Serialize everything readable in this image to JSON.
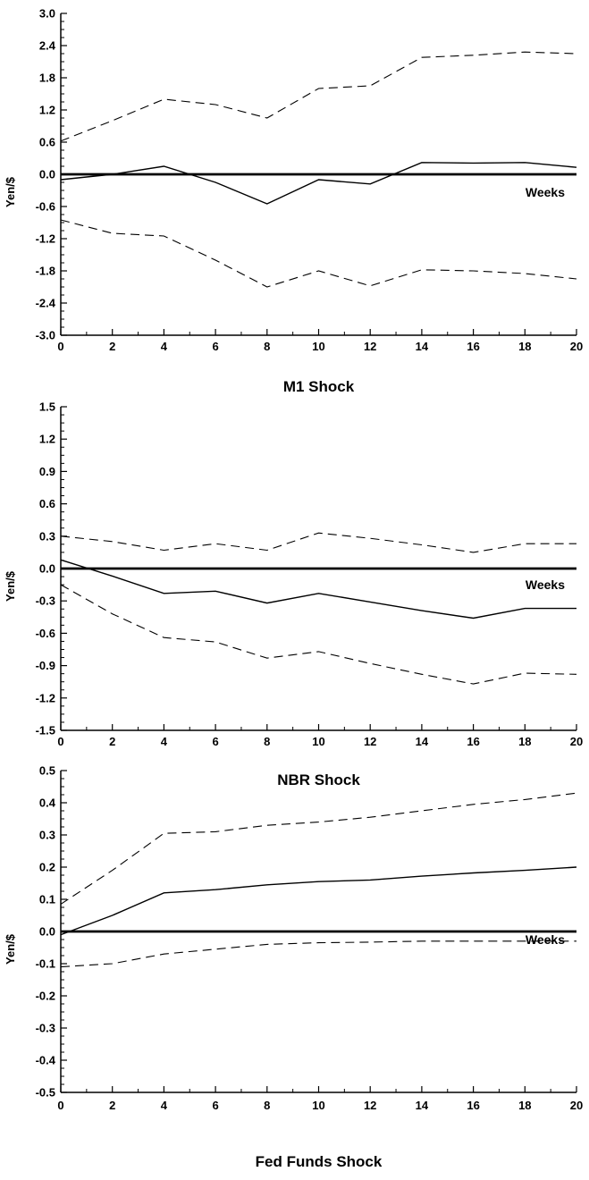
{
  "chart_data": [
    {
      "type": "line",
      "title": "",
      "xlabel": "M1 Shock",
      "ylabel": "Yen/$",
      "annotation": "Weeks",
      "xlim": [
        0,
        20
      ],
      "ylim": [
        -3.0,
        3.0
      ],
      "xticks": [
        "0",
        "2",
        "4",
        "6",
        "8",
        "10",
        "12",
        "14",
        "16",
        "18",
        "20"
      ],
      "yticks": [
        "3.0",
        "2.4",
        "1.8",
        "1.2",
        "0.6",
        "0.0",
        "-0.6",
        "-1.2",
        "-1.8",
        "-2.4",
        "-3.0"
      ],
      "zero_line": true,
      "series": [
        {
          "style": "solid",
          "x": [
            0,
            2,
            4,
            6,
            8,
            10,
            12,
            14,
            16,
            18,
            20
          ],
          "y": [
            -0.1,
            0.0,
            0.15,
            -0.15,
            -0.55,
            -0.1,
            -0.18,
            0.22,
            0.21,
            0.22,
            0.13
          ]
        },
        {
          "style": "dashed",
          "x": [
            0,
            2,
            4,
            6,
            8,
            10,
            12,
            14,
            16,
            18,
            20
          ],
          "y": [
            0.62,
            1.0,
            1.4,
            1.3,
            1.05,
            1.6,
            1.65,
            2.18,
            2.22,
            2.28,
            2.25
          ]
        },
        {
          "style": "dashed",
          "x": [
            0,
            2,
            4,
            6,
            8,
            10,
            12,
            14,
            16,
            18,
            20
          ],
          "y": [
            -0.85,
            -1.1,
            -1.15,
            -1.6,
            -2.1,
            -1.8,
            -2.08,
            -1.78,
            -1.8,
            -1.85,
            -1.95
          ]
        }
      ]
    },
    {
      "type": "line",
      "title": "",
      "xlabel": "NBR Shock",
      "ylabel": "Yen/$",
      "annotation": "Weeks",
      "xlim": [
        0,
        20
      ],
      "ylim": [
        -1.5,
        1.5
      ],
      "xticks": [
        "0",
        "2",
        "4",
        "6",
        "8",
        "10",
        "12",
        "14",
        "16",
        "18",
        "20"
      ],
      "yticks": [
        "1.5",
        "1.2",
        "0.9",
        "0.6",
        "0.3",
        "0.0",
        "-0.3",
        "-0.6",
        "-0.9",
        "-1.2",
        "-1.5"
      ],
      "zero_line": true,
      "series": [
        {
          "style": "solid",
          "x": [
            0,
            2,
            4,
            6,
            8,
            10,
            12,
            14,
            16,
            18,
            20
          ],
          "y": [
            0.08,
            -0.07,
            -0.23,
            -0.21,
            -0.32,
            -0.23,
            -0.31,
            -0.39,
            -0.46,
            -0.37,
            -0.37
          ]
        },
        {
          "style": "dashed",
          "x": [
            0,
            2,
            4,
            6,
            8,
            10,
            12,
            14,
            16,
            18,
            20
          ],
          "y": [
            0.3,
            0.25,
            0.17,
            0.23,
            0.17,
            0.33,
            0.28,
            0.22,
            0.15,
            0.23,
            0.23
          ]
        },
        {
          "style": "dashed",
          "x": [
            0,
            2,
            4,
            6,
            8,
            10,
            12,
            14,
            16,
            18,
            20
          ],
          "y": [
            -0.15,
            -0.42,
            -0.64,
            -0.68,
            -0.83,
            -0.77,
            -0.88,
            -0.98,
            -1.07,
            -0.97,
            -0.98
          ]
        }
      ]
    },
    {
      "type": "line",
      "title": "",
      "xlabel": "Fed Funds Shock",
      "ylabel": "Yen/$",
      "annotation": "Weeks",
      "xlim": [
        0,
        20
      ],
      "ylim": [
        -0.5,
        0.5
      ],
      "xticks": [
        "0",
        "2",
        "4",
        "6",
        "8",
        "10",
        "12",
        "14",
        "16",
        "18",
        "20"
      ],
      "yticks": [
        "0.5",
        "0.4",
        "0.3",
        "0.2",
        "0.1",
        "0.0",
        "-0.1",
        "-0.2",
        "-0.3",
        "-0.4",
        "-0.5"
      ],
      "zero_line": true,
      "series": [
        {
          "style": "solid",
          "x": [
            0,
            2,
            4,
            6,
            8,
            10,
            12,
            14,
            16,
            18,
            20
          ],
          "y": [
            -0.01,
            0.05,
            0.12,
            0.13,
            0.145,
            0.155,
            0.16,
            0.172,
            0.182,
            0.19,
            0.2
          ]
        },
        {
          "style": "dashed",
          "x": [
            0,
            2,
            4,
            6,
            8,
            10,
            12,
            14,
            16,
            18,
            20
          ],
          "y": [
            0.085,
            0.19,
            0.305,
            0.31,
            0.33,
            0.34,
            0.355,
            0.375,
            0.395,
            0.41,
            0.43
          ]
        },
        {
          "style": "dashed",
          "x": [
            0,
            2,
            4,
            6,
            8,
            10,
            12,
            14,
            16,
            18,
            20
          ],
          "y": [
            -0.11,
            -0.1,
            -0.07,
            -0.055,
            -0.04,
            -0.035,
            -0.033,
            -0.03,
            -0.03,
            -0.03,
            -0.03
          ]
        }
      ]
    }
  ]
}
